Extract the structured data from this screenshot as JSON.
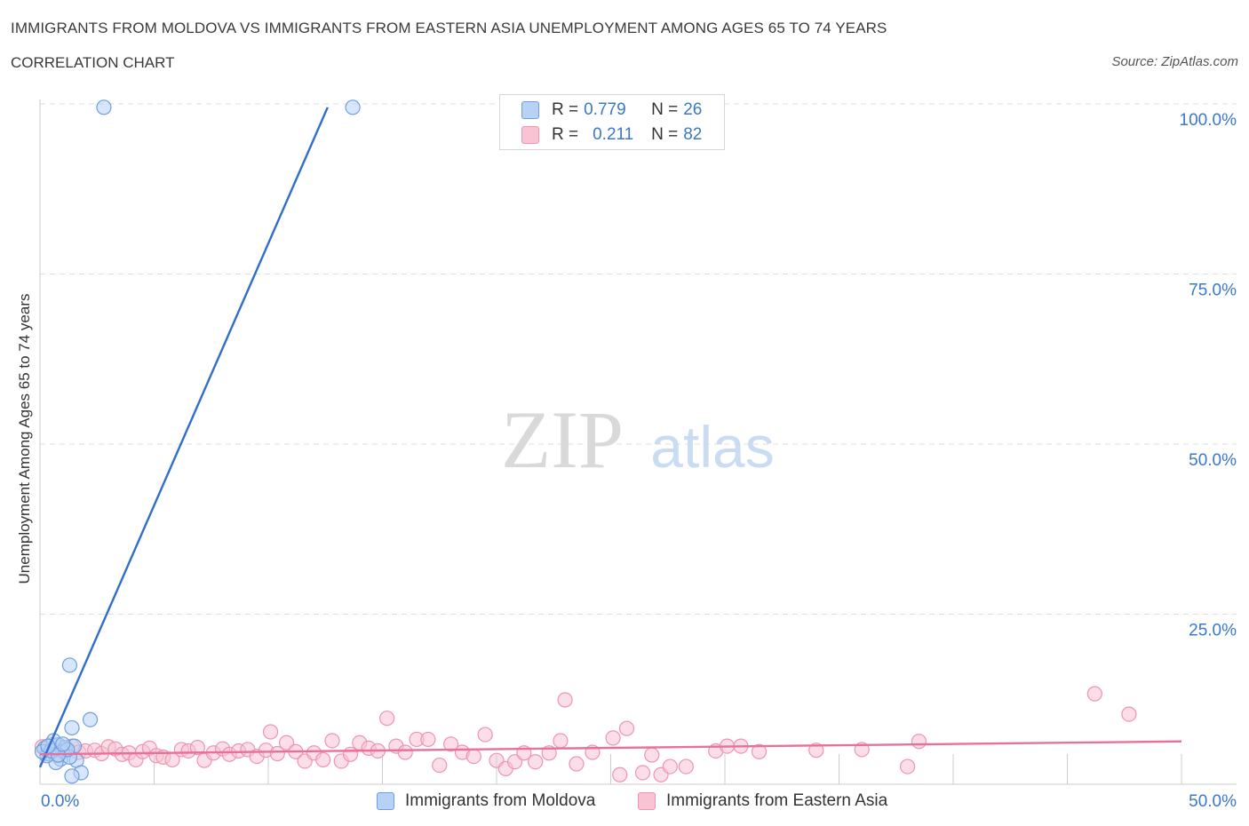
{
  "title": "IMMIGRANTS FROM MOLDOVA VS IMMIGRANTS FROM EASTERN ASIA UNEMPLOYMENT AMONG AGES 65 TO 74 YEARS",
  "subtitle": "CORRELATION CHART",
  "source": "Source: ZipAtlas.com",
  "watermark": {
    "zip": "ZIP",
    "atlas": "atlas"
  },
  "colors": {
    "moldova_fill": "#b7d2f5",
    "moldova_stroke": "#6f9fe0",
    "moldova_line": "#2f6ecb",
    "asia_fill": "#f8c3d3",
    "asia_stroke": "#ee94b0",
    "asia_line": "#e8709a",
    "tick_label": "#3a78c8",
    "grid": "#dddddd"
  },
  "legend": {
    "moldova": {
      "r_label": "R =",
      "r_value": "0.779",
      "n_label": "N =",
      "n_value": "26"
    },
    "asia": {
      "r_label": "R =",
      "r_value": "0.211",
      "n_label": "N =",
      "n_value": "82"
    }
  },
  "chart_data": {
    "type": "scatter",
    "title": "IMMIGRANTS FROM MOLDOVA VS IMMIGRANTS FROM EASTERN ASIA UNEMPLOYMENT AMONG AGES 65 TO 74 YEARS",
    "xlabel": "",
    "ylabel": "Unemployment Among Ages 65 to 74 years",
    "xlim": [
      0,
      50
    ],
    "ylim": [
      0,
      100
    ],
    "x_tick_labels": [
      "0.0%",
      "50.0%"
    ],
    "y_tick_labels": [
      "25.0%",
      "50.0%",
      "75.0%",
      "100.0%"
    ],
    "y_ticks": [
      25,
      50,
      75,
      100
    ],
    "grid": true,
    "series": [
      {
        "name": "Immigrants from Moldova",
        "points": [
          [
            2.8,
            99.5
          ],
          [
            13.7,
            99.5
          ],
          [
            1.3,
            17.5
          ],
          [
            2.2,
            9.5
          ],
          [
            1.4,
            8.3
          ],
          [
            0.2,
            5.3
          ],
          [
            0.5,
            5.0
          ],
          [
            0.8,
            5.8
          ],
          [
            1.0,
            4.8
          ],
          [
            0.4,
            4.5
          ],
          [
            1.1,
            5.4
          ],
          [
            0.6,
            6.4
          ],
          [
            1.5,
            5.6
          ],
          [
            0.9,
            3.7
          ],
          [
            0.7,
            3.2
          ],
          [
            1.6,
            3.5
          ],
          [
            1.3,
            4.0
          ],
          [
            0.3,
            4.2
          ],
          [
            0.1,
            4.8
          ],
          [
            1.8,
            1.7
          ],
          [
            1.4,
            1.2
          ],
          [
            0.5,
            4.9
          ],
          [
            1.2,
            5.1
          ],
          [
            0.8,
            4.3
          ],
          [
            0.35,
            5.6
          ],
          [
            1.0,
            5.9
          ]
        ],
        "trend": {
          "x": [
            0.0,
            12.6
          ],
          "y": [
            2.5,
            99.5
          ]
        }
      },
      {
        "name": "Immigrants from Eastern Asia",
        "points": [
          [
            0.1,
            5.5
          ],
          [
            0.3,
            4.5
          ],
          [
            0.5,
            5.8
          ],
          [
            0.8,
            4.2
          ],
          [
            1.1,
            5.0
          ],
          [
            1.4,
            5.6
          ],
          [
            1.7,
            4.7
          ],
          [
            2.0,
            4.9
          ],
          [
            2.4,
            5.0
          ],
          [
            2.7,
            4.5
          ],
          [
            3.0,
            5.5
          ],
          [
            3.3,
            5.2
          ],
          [
            3.6,
            4.4
          ],
          [
            3.9,
            4.6
          ],
          [
            4.2,
            3.6
          ],
          [
            4.5,
            4.8
          ],
          [
            4.8,
            5.3
          ],
          [
            5.1,
            4.2
          ],
          [
            5.4,
            4.0
          ],
          [
            5.8,
            3.6
          ],
          [
            6.2,
            5.1
          ],
          [
            6.5,
            4.9
          ],
          [
            6.9,
            5.4
          ],
          [
            7.2,
            3.5
          ],
          [
            7.6,
            4.6
          ],
          [
            8.0,
            5.2
          ],
          [
            8.3,
            4.4
          ],
          [
            8.7,
            4.9
          ],
          [
            9.1,
            5.1
          ],
          [
            9.5,
            4.1
          ],
          [
            9.9,
            5.0
          ],
          [
            10.1,
            7.7
          ],
          [
            10.4,
            4.5
          ],
          [
            10.8,
            6.1
          ],
          [
            11.2,
            4.8
          ],
          [
            11.6,
            3.4
          ],
          [
            12.0,
            4.6
          ],
          [
            12.4,
            3.6
          ],
          [
            12.8,
            6.4
          ],
          [
            13.2,
            3.4
          ],
          [
            13.6,
            4.4
          ],
          [
            14.0,
            6.1
          ],
          [
            14.4,
            5.3
          ],
          [
            14.8,
            4.9
          ],
          [
            15.2,
            9.7
          ],
          [
            15.6,
            5.6
          ],
          [
            16.0,
            4.7
          ],
          [
            16.5,
            6.6
          ],
          [
            17.0,
            6.6
          ],
          [
            17.5,
            2.8
          ],
          [
            18.0,
            5.9
          ],
          [
            18.5,
            4.7
          ],
          [
            19.0,
            4.1
          ],
          [
            19.5,
            7.3
          ],
          [
            20.0,
            3.5
          ],
          [
            20.4,
            2.3
          ],
          [
            20.8,
            3.3
          ],
          [
            21.2,
            4.6
          ],
          [
            21.7,
            3.3
          ],
          [
            22.3,
            4.6
          ],
          [
            22.8,
            6.4
          ],
          [
            23.0,
            12.4
          ],
          [
            23.5,
            3.0
          ],
          [
            24.2,
            4.7
          ],
          [
            25.1,
            6.8
          ],
          [
            25.4,
            1.4
          ],
          [
            25.7,
            8.2
          ],
          [
            26.4,
            1.7
          ],
          [
            26.8,
            4.3
          ],
          [
            27.2,
            1.4
          ],
          [
            27.6,
            2.6
          ],
          [
            28.3,
            2.6
          ],
          [
            29.6,
            4.9
          ],
          [
            30.1,
            5.6
          ],
          [
            30.7,
            5.6
          ],
          [
            36.0,
            5.1
          ],
          [
            38.0,
            2.6
          ],
          [
            38.5,
            6.3
          ],
          [
            46.2,
            13.3
          ],
          [
            47.7,
            10.3
          ],
          [
            31.5,
            4.8
          ],
          [
            34.0,
            5.0
          ]
        ],
        "trend": {
          "x": [
            0.0,
            50.0
          ],
          "y": [
            4.4,
            6.3
          ]
        }
      }
    ]
  },
  "bottom_legend": {
    "moldova": "Immigrants from Moldova",
    "asia": "Immigrants from Eastern Asia"
  }
}
